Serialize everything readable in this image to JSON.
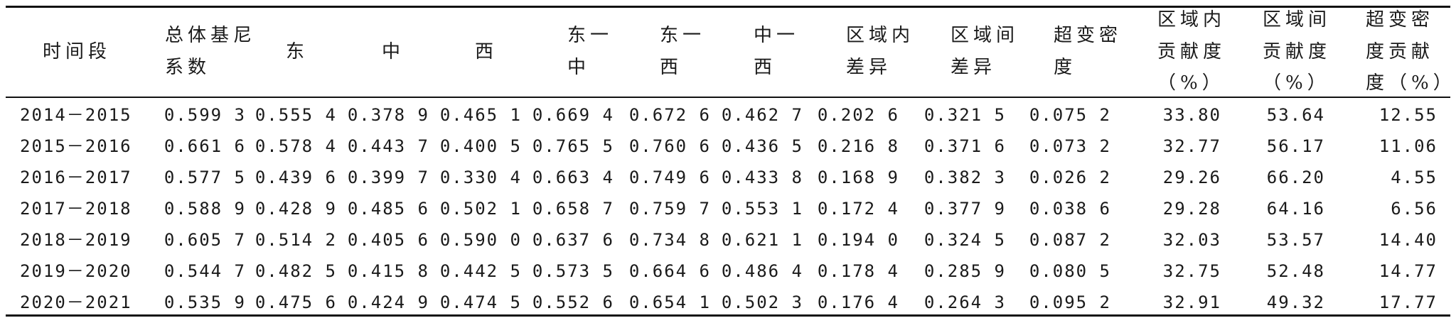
{
  "table": {
    "headers": [
      [
        "时间段"
      ],
      [
        "总体基尼",
        "系数"
      ],
      [
        "东"
      ],
      [
        "中"
      ],
      [
        "西"
      ],
      [
        "东一",
        "中"
      ],
      [
        "东一",
        "西"
      ],
      [
        "中一",
        "西"
      ],
      [
        "区域内",
        "差异"
      ],
      [
        "区域间",
        "差异"
      ],
      [
        "超变密",
        "度"
      ],
      [
        "区域内",
        "贡献度",
        "（%）"
      ],
      [
        "区域间",
        "贡献度",
        "（%）"
      ],
      [
        "超变密",
        "度贡献",
        "度（%）"
      ]
    ],
    "rows": [
      [
        "2014－2015",
        "0.599 3",
        "0.555 4",
        "0.378 9",
        "0.465 1",
        "0.669 4",
        "0.672 6",
        "0.462 7",
        "0.202 6",
        "0.321 5",
        "0.075 2",
        "33.80",
        "53.64",
        "12.55"
      ],
      [
        "2015－2016",
        "0.661 6",
        "0.578 4",
        "0.443 7",
        "0.400 5",
        "0.765 5",
        "0.760 6",
        "0.436 5",
        "0.216 8",
        "0.371 6",
        "0.073 2",
        "32.77",
        "56.17",
        "11.06"
      ],
      [
        "2016－2017",
        "0.577 5",
        "0.439 6",
        "0.399 7",
        "0.330 4",
        "0.663 4",
        "0.749 6",
        "0.433 8",
        "0.168 9",
        "0.382 3",
        "0.026 2",
        "29.26",
        "66.20",
        "4.55"
      ],
      [
        "2017－2018",
        "0.588 9",
        "0.428 9",
        "0.485 6",
        "0.502 1",
        "0.658 7",
        "0.759 7",
        "0.553 1",
        "0.172 4",
        "0.377 9",
        "0.038 6",
        "29.28",
        "64.16",
        "6.56"
      ],
      [
        "2018－2019",
        "0.605 7",
        "0.514 2",
        "0.405 6",
        "0.590 0",
        "0.637 6",
        "0.734 8",
        "0.621 1",
        "0.194 0",
        "0.324 5",
        "0.087 2",
        "32.03",
        "53.57",
        "14.40"
      ],
      [
        "2019－2020",
        "0.544 7",
        "0.482 5",
        "0.415 8",
        "0.442 5",
        "0.573 5",
        "0.664 6",
        "0.486 4",
        "0.178 4",
        "0.285 9",
        "0.080 5",
        "32.75",
        "52.48",
        "14.77"
      ],
      [
        "2020－2021",
        "0.535 9",
        "0.475 6",
        "0.424 9",
        "0.474 5",
        "0.552 6",
        "0.654 1",
        "0.502 3",
        "0.176 4",
        "0.264 3",
        "0.095 2",
        "32.91",
        "49.32",
        "17.77"
      ]
    ]
  }
}
